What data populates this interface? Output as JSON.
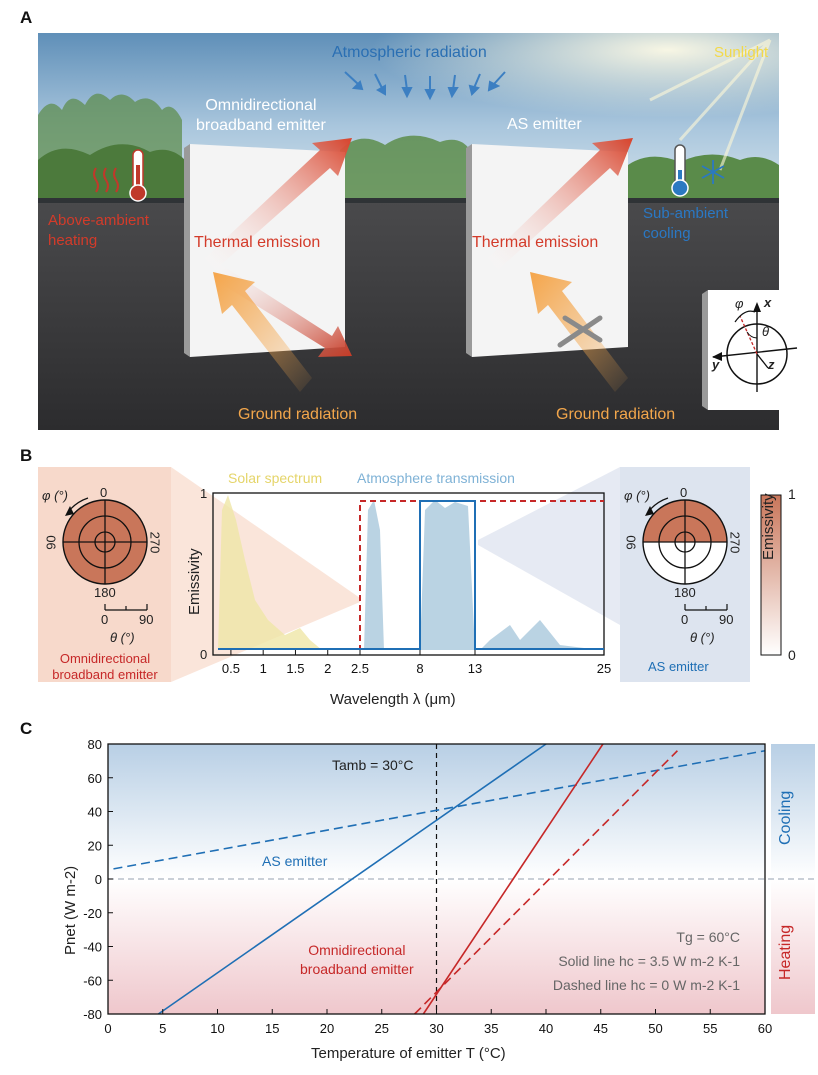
{
  "panel_a": {
    "letter": "A",
    "atmospheric": "Atmospheric radiation",
    "sunlight": "Sunlight",
    "omni_line1": "Omnidirectional",
    "omni_line2": "broadband emitter",
    "as_emitter": "AS emitter",
    "above_line1": "Above-ambient",
    "above_line2": "heating",
    "sub_line1": "Sub-ambient",
    "sub_line2": "cooling",
    "thermal1": "Thermal emission",
    "thermal2": "Thermal emission",
    "ground1": "Ground radiation",
    "ground2": "Ground radiation",
    "axes": {
      "phi": "φ",
      "x": "x",
      "theta": "θ",
      "y": "y",
      "z": "z"
    }
  },
  "panel_b": {
    "letter": "B",
    "left_box": {
      "phi_label": "φ (°)",
      "top": "0",
      "left": "90",
      "right": "270",
      "bottom": "180",
      "theta_ticks": [
        "0",
        "90"
      ],
      "theta_label": "θ (°)",
      "caption1": "Omnidirectional",
      "caption2": "broadband emitter"
    },
    "right_box": {
      "phi_label": "φ (°)",
      "top": "0",
      "left": "90",
      "right": "270",
      "bottom": "180",
      "theta_ticks": [
        "0",
        "90"
      ],
      "theta_label": "θ (°)",
      "caption": "AS emitter"
    },
    "colorbar": {
      "label": "Emissivity",
      "max": "1",
      "min": "0",
      "color_high": "#c9765a",
      "color_low": "#ffffff"
    }
  },
  "chart_data": [
    {
      "type": "line",
      "title": "",
      "legend_top": [
        "Solar spectrum",
        "Atmosphere transmission"
      ],
      "xlabel": "Wavelength λ (μm)",
      "ylabel": "Emissivity",
      "x_tick_labels": [
        "0.5",
        "1",
        "1.5",
        "2",
        "2.5",
        "8",
        "13",
        "25"
      ],
      "y_tick_labels": [
        "0",
        "1"
      ],
      "ylim": [
        0,
        1
      ],
      "series": [
        {
          "name": "Omnidirectional broadband emitter",
          "style": "dashed",
          "color": "#c62828",
          "x": [
            0.3,
            2.5,
            2.5,
            25
          ],
          "y": [
            0,
            0,
            1,
            1
          ]
        },
        {
          "name": "AS emitter",
          "style": "solid",
          "color": "#1f6fb5",
          "x": [
            0.3,
            8,
            8,
            13,
            13,
            25
          ],
          "y": [
            0,
            0,
            1,
            1,
            0,
            0
          ]
        }
      ]
    },
    {
      "type": "line",
      "title": "",
      "xlabel": "Temperature of emitter T (°C)",
      "ylabel": "Pnet (W m-2)",
      "xlim": [
        0,
        60
      ],
      "ylim": [
        -80,
        80
      ],
      "x_ticks": [
        0,
        5,
        10,
        15,
        20,
        25,
        30,
        35,
        40,
        45,
        50,
        55,
        60
      ],
      "y_ticks": [
        -80,
        -60,
        -40,
        -20,
        0,
        20,
        40,
        60,
        80
      ],
      "annotations": {
        "tamb": "Tamb = 30°C",
        "as_label": "AS emitter",
        "omni_line1": "Omnidirectional",
        "omni_line2": "broadband emitter",
        "tg": "Tg = 60°C",
        "solid_note": "Solid line hc = 3.5 W m-2 K-1",
        "dashed_note": "Dashed line hc = 0 W m-2 K-1",
        "cooling": "Cooling",
        "heating": "Heating"
      },
      "series": [
        {
          "name": "AS emitter (hc = 3.5)",
          "style": "solid",
          "color": "#1f6fb5",
          "x": [
            4.6,
            40
          ],
          "y": [
            -80,
            80
          ]
        },
        {
          "name": "AS emitter (hc = 0)",
          "style": "dashed",
          "color": "#1f6fb5",
          "x": [
            0.5,
            60
          ],
          "y": [
            6,
            76
          ]
        },
        {
          "name": "Omnidirectional (hc = 3.5)",
          "style": "solid",
          "color": "#c62828",
          "x": [
            28.8,
            45.2
          ],
          "y": [
            -80,
            80
          ]
        },
        {
          "name": "Omnidirectional (hc = 0)",
          "style": "dashed",
          "color": "#c62828",
          "x": [
            28,
            52
          ],
          "y": [
            -80,
            76
          ]
        }
      ]
    }
  ]
}
